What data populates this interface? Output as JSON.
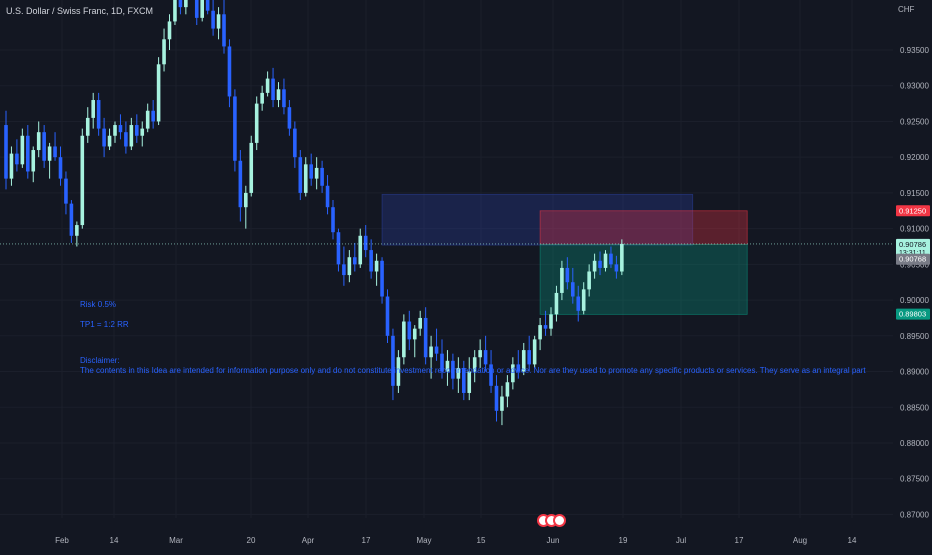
{
  "header": {
    "symbol_title": "U.S. Dollar / Swiss Franc, 1D, FXCM",
    "currency": "CHF"
  },
  "colors": {
    "background": "#131722",
    "up": "#a7f2df",
    "down": "#2962ff",
    "grid": "#1b1f2b",
    "axis_text": "#b2b5be",
    "note_text": "#2962ff",
    "stop_zone": "#f23645",
    "target_zone": "#089981"
  },
  "annotations": {
    "risk": "Risk 0.5%",
    "tp": "TP1 = 1:2 RR",
    "disclaimer_title": "Disclaimer:",
    "disclaimer_body": "The contents in this Idea are intended for information purpose only and do not constitute investment recommendation or advice. Nor are they used to promote any specific products or services. They serve as an integral part"
  },
  "replay_badge": "replay-icon",
  "chart_data": {
    "type": "candlestick",
    "ylim": [
      0.8695,
      0.942
    ],
    "y_ticks": [
      "0.93500",
      "0.93000",
      "0.92500",
      "0.92000",
      "0.91500",
      "0.91000",
      "0.90500",
      "0.90000",
      "0.89500",
      "0.89000",
      "0.88500",
      "0.88000",
      "0.87500",
      "0.87000"
    ],
    "x_ticks": [
      "Feb",
      "14",
      "Mar",
      "20",
      "Apr",
      "17",
      "May",
      "15",
      "Jun",
      "19",
      "Jul",
      "17",
      "Aug",
      "14"
    ],
    "price_labels": [
      {
        "text": "0.91250",
        "value": 0.9125,
        "color": "#f23645",
        "text_color": "#ffffff"
      },
      {
        "text": "0.90786",
        "value": 0.90786,
        "sub": "13:31:11",
        "color": "#a7f2df",
        "text_color": "#131722"
      },
      {
        "text": "0.90768",
        "value": 0.90768,
        "color": "#787b86",
        "text_color": "#ffffff"
      },
      {
        "text": "0.89803",
        "value": 0.89803,
        "color": "#089981",
        "text_color": "#ffffff"
      }
    ],
    "last_price": 0.90786,
    "zones": [
      {
        "name": "supply-zone",
        "from_bar": 69,
        "to_bar": 126,
        "top": 0.9148,
        "bottom": 0.9077,
        "color": "#2a3f9e"
      },
      {
        "name": "stop-zone",
        "from_bar": 98,
        "to_bar": 136,
        "top": 0.9125,
        "bottom": 0.9078,
        "color": "#f23645"
      },
      {
        "name": "target-zone",
        "from_bar": 98,
        "to_bar": 136,
        "top": 0.9078,
        "bottom": 0.898,
        "color": "#089981"
      }
    ],
    "candles": [
      [
        0.9245,
        0.9265,
        0.9155,
        0.917
      ],
      [
        0.917,
        0.9215,
        0.916,
        0.9205
      ],
      [
        0.9205,
        0.9225,
        0.918,
        0.919
      ],
      [
        0.919,
        0.924,
        0.9185,
        0.923
      ],
      [
        0.923,
        0.9245,
        0.917,
        0.918
      ],
      [
        0.918,
        0.9215,
        0.9165,
        0.921
      ],
      [
        0.921,
        0.925,
        0.92,
        0.9235
      ],
      [
        0.9235,
        0.9245,
        0.9185,
        0.9195
      ],
      [
        0.9195,
        0.922,
        0.917,
        0.9215
      ],
      [
        0.9215,
        0.9235,
        0.9195,
        0.92
      ],
      [
        0.92,
        0.9215,
        0.916,
        0.917
      ],
      [
        0.917,
        0.918,
        0.912,
        0.9135
      ],
      [
        0.9135,
        0.914,
        0.908,
        0.909
      ],
      [
        0.909,
        0.911,
        0.9075,
        0.9105
      ],
      [
        0.9105,
        0.924,
        0.91,
        0.923
      ],
      [
        0.923,
        0.927,
        0.922,
        0.9255
      ],
      [
        0.9255,
        0.929,
        0.924,
        0.928
      ],
      [
        0.928,
        0.929,
        0.923,
        0.924
      ],
      [
        0.924,
        0.9255,
        0.92,
        0.9215
      ],
      [
        0.9215,
        0.924,
        0.921,
        0.923
      ],
      [
        0.923,
        0.925,
        0.922,
        0.9245
      ],
      [
        0.9245,
        0.926,
        0.9225,
        0.9235
      ],
      [
        0.9235,
        0.925,
        0.9205,
        0.9215
      ],
      [
        0.9215,
        0.9255,
        0.921,
        0.9245
      ],
      [
        0.9245,
        0.926,
        0.922,
        0.923
      ],
      [
        0.923,
        0.925,
        0.9215,
        0.924
      ],
      [
        0.924,
        0.9275,
        0.9235,
        0.9265
      ],
      [
        0.9265,
        0.928,
        0.924,
        0.925
      ],
      [
        0.925,
        0.934,
        0.9245,
        0.933
      ],
      [
        0.933,
        0.938,
        0.932,
        0.9365
      ],
      [
        0.9365,
        0.94,
        0.935,
        0.939
      ],
      [
        0.939,
        0.944,
        0.9385,
        0.943
      ],
      [
        0.943,
        0.945,
        0.94,
        0.941
      ],
      [
        0.941,
        0.946,
        0.94,
        0.945
      ],
      [
        0.945,
        0.947,
        0.942,
        0.944
      ],
      [
        0.944,
        0.9455,
        0.9385,
        0.9395
      ],
      [
        0.9395,
        0.944,
        0.939,
        0.943
      ],
      [
        0.943,
        0.945,
        0.94,
        0.9405
      ],
      [
        0.9405,
        0.943,
        0.937,
        0.938
      ],
      [
        0.938,
        0.941,
        0.9365,
        0.94
      ],
      [
        0.94,
        0.942,
        0.9345,
        0.9355
      ],
      [
        0.9355,
        0.9365,
        0.927,
        0.9285
      ],
      [
        0.9285,
        0.9295,
        0.918,
        0.9195
      ],
      [
        0.9195,
        0.921,
        0.911,
        0.913
      ],
      [
        0.913,
        0.916,
        0.91,
        0.915
      ],
      [
        0.915,
        0.923,
        0.9145,
        0.922
      ],
      [
        0.922,
        0.9285,
        0.921,
        0.9275
      ],
      [
        0.9275,
        0.93,
        0.9265,
        0.929
      ],
      [
        0.929,
        0.932,
        0.9285,
        0.931
      ],
      [
        0.931,
        0.9325,
        0.927,
        0.928
      ],
      [
        0.928,
        0.9305,
        0.927,
        0.9295
      ],
      [
        0.9295,
        0.931,
        0.926,
        0.927
      ],
      [
        0.927,
        0.928,
        0.923,
        0.924
      ],
      [
        0.924,
        0.925,
        0.9185,
        0.92
      ],
      [
        0.92,
        0.921,
        0.914,
        0.915
      ],
      [
        0.915,
        0.92,
        0.9145,
        0.919
      ],
      [
        0.919,
        0.9205,
        0.916,
        0.917
      ],
      [
        0.917,
        0.92,
        0.9155,
        0.9185
      ],
      [
        0.9185,
        0.9195,
        0.915,
        0.916
      ],
      [
        0.916,
        0.9175,
        0.912,
        0.913
      ],
      [
        0.913,
        0.914,
        0.9085,
        0.9095
      ],
      [
        0.9095,
        0.91,
        0.904,
        0.905
      ],
      [
        0.905,
        0.9075,
        0.902,
        0.9035
      ],
      [
        0.9035,
        0.907,
        0.9025,
        0.906
      ],
      [
        0.906,
        0.908,
        0.904,
        0.905
      ],
      [
        0.905,
        0.91,
        0.9045,
        0.909
      ],
      [
        0.909,
        0.9105,
        0.906,
        0.907
      ],
      [
        0.907,
        0.9085,
        0.903,
        0.904
      ],
      [
        0.904,
        0.9065,
        0.902,
        0.9055
      ],
      [
        0.9055,
        0.906,
        0.8995,
        0.9005
      ],
      [
        0.9005,
        0.9015,
        0.894,
        0.895
      ],
      [
        0.895,
        0.896,
        0.886,
        0.888
      ],
      [
        0.888,
        0.893,
        0.887,
        0.892
      ],
      [
        0.892,
        0.898,
        0.891,
        0.897
      ],
      [
        0.897,
        0.8985,
        0.893,
        0.8945
      ],
      [
        0.8945,
        0.8965,
        0.892,
        0.896
      ],
      [
        0.896,
        0.8985,
        0.895,
        0.8975
      ],
      [
        0.8975,
        0.899,
        0.891,
        0.892
      ],
      [
        0.892,
        0.895,
        0.889,
        0.8935
      ],
      [
        0.8935,
        0.896,
        0.8915,
        0.8925
      ],
      [
        0.8925,
        0.8945,
        0.889,
        0.89
      ],
      [
        0.89,
        0.893,
        0.888,
        0.8915
      ],
      [
        0.8915,
        0.8925,
        0.8875,
        0.889
      ],
      [
        0.889,
        0.892,
        0.887,
        0.8905
      ],
      [
        0.8905,
        0.8915,
        0.886,
        0.887
      ],
      [
        0.887,
        0.892,
        0.886,
        0.89
      ],
      [
        0.89,
        0.893,
        0.8885,
        0.892
      ],
      [
        0.892,
        0.8945,
        0.8905,
        0.893
      ],
      [
        0.893,
        0.895,
        0.89,
        0.891
      ],
      [
        0.891,
        0.893,
        0.887,
        0.888
      ],
      [
        0.888,
        0.8895,
        0.883,
        0.8845
      ],
      [
        0.8845,
        0.888,
        0.8825,
        0.8865
      ],
      [
        0.8865,
        0.8895,
        0.885,
        0.8885
      ],
      [
        0.8885,
        0.892,
        0.8875,
        0.891
      ],
      [
        0.891,
        0.893,
        0.889,
        0.89
      ],
      [
        0.89,
        0.894,
        0.8895,
        0.893
      ],
      [
        0.893,
        0.895,
        0.89,
        0.891
      ],
      [
        0.891,
        0.895,
        0.8905,
        0.8945
      ],
      [
        0.8945,
        0.8975,
        0.893,
        0.8965
      ],
      [
        0.8965,
        0.8985,
        0.895,
        0.896
      ],
      [
        0.896,
        0.899,
        0.895,
        0.898
      ],
      [
        0.898,
        0.902,
        0.897,
        0.901
      ],
      [
        0.901,
        0.9055,
        0.9,
        0.9045
      ],
      [
        0.9045,
        0.906,
        0.9015,
        0.9025
      ],
      [
        0.9025,
        0.9045,
        0.8995,
        0.9005
      ],
      [
        0.9005,
        0.902,
        0.897,
        0.8985
      ],
      [
        0.8985,
        0.9025,
        0.898,
        0.9015
      ],
      [
        0.9015,
        0.905,
        0.9005,
        0.904
      ],
      [
        0.904,
        0.9065,
        0.903,
        0.9055
      ],
      [
        0.9055,
        0.9068,
        0.9035,
        0.9045
      ],
      [
        0.9045,
        0.907,
        0.904,
        0.9065
      ],
      [
        0.9065,
        0.9075,
        0.9045,
        0.905
      ],
      [
        0.905,
        0.9062,
        0.903,
        0.904
      ],
      [
        0.904,
        0.9085,
        0.9035,
        0.90786
      ]
    ]
  }
}
